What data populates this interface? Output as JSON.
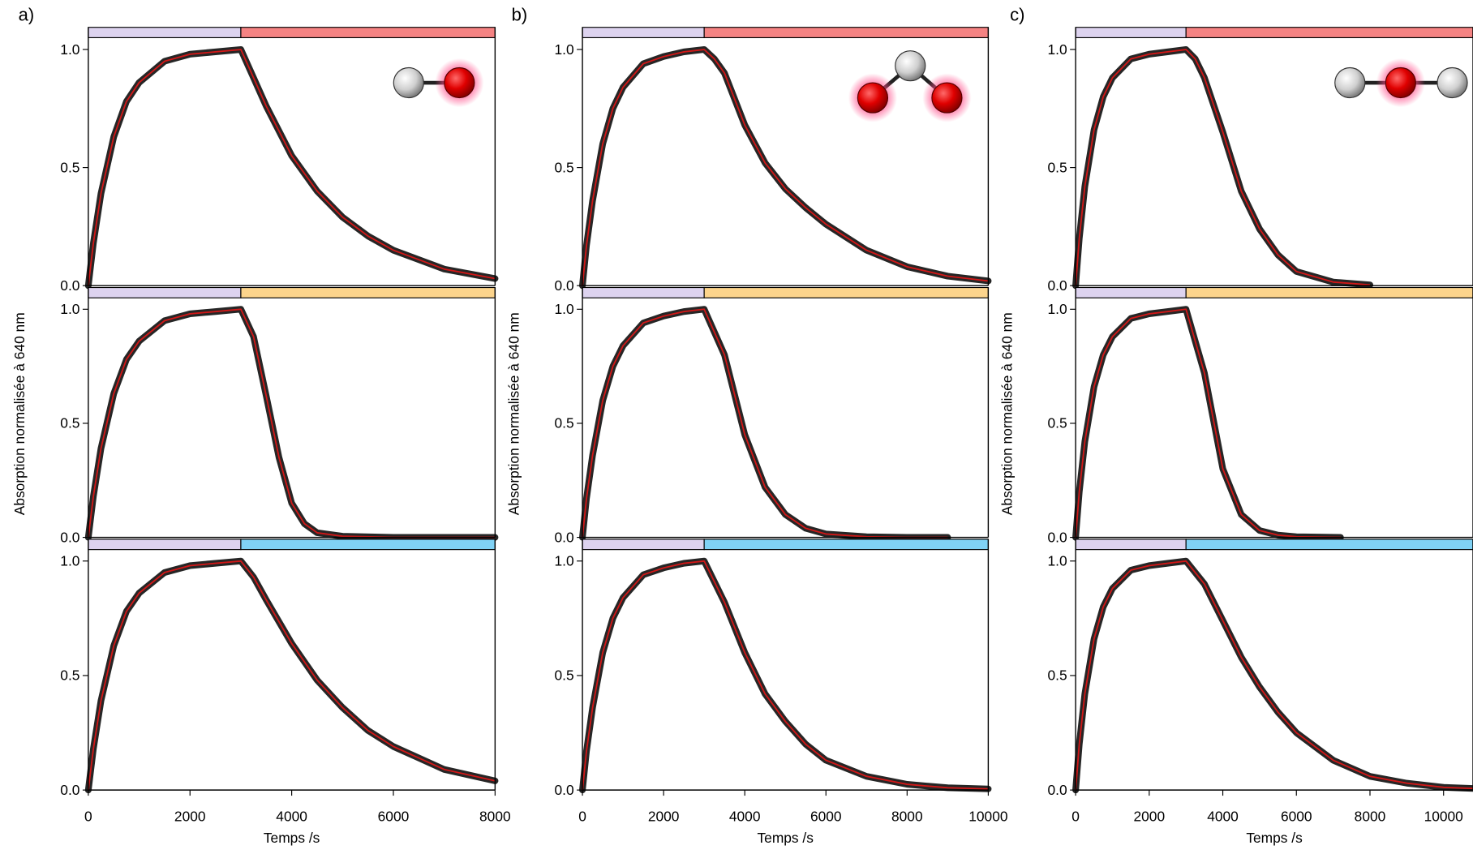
{
  "chart_data": [
    {
      "type": "line",
      "panel_label": "a)",
      "ylabel": "Absorption normalisée à 640 nm",
      "xlabel": "Temps /s",
      "xlim": [
        0,
        8000
      ],
      "xticks": [
        0,
        2000,
        4000,
        6000,
        8000
      ],
      "panels": [
        {
          "ylim": [
            0,
            1.05
          ],
          "yticks": [
            {
              "value": 0,
              "label": "0.0"
            },
            0.5,
            {
              "value": 1,
              "label": "1.0"
            }
          ],
          "bars": [
            {
              "start": 0,
              "end": 3000,
              "color": "#ddd3ef"
            },
            {
              "start": 3000,
              "end": 8000,
              "color": "#f58383"
            }
          ],
          "series": [
            {
              "color": "#d01818",
              "band_color": "#000000",
              "x": [
                0,
                100,
                250,
                500,
                750,
                1000,
                1500,
                2000,
                2500,
                3000,
                3250,
                3500,
                4000,
                4500,
                5000,
                5500,
                6000,
                7000,
                8000
              ],
              "values": [
                0,
                0.18,
                0.39,
                0.63,
                0.78,
                0.86,
                0.95,
                0.98,
                0.99,
                1.0,
                0.88,
                0.76,
                0.55,
                0.4,
                0.29,
                0.21,
                0.15,
                0.07,
                0.03
              ]
            }
          ]
        },
        {
          "ylim": [
            0,
            1.05
          ],
          "yticks": [
            {
              "value": 0,
              "label": "0.0"
            },
            0.5,
            {
              "value": 1,
              "label": "1.0"
            }
          ],
          "bars": [
            {
              "start": 0,
              "end": 3000,
              "color": "#ddd3ef"
            },
            {
              "start": 3000,
              "end": 8000,
              "color": "#fcd48c"
            }
          ],
          "series": [
            {
              "color": "#d01818",
              "band_color": "#000000",
              "x": [
                0,
                100,
                250,
                500,
                750,
                1000,
                1500,
                2000,
                2500,
                3000,
                3250,
                3500,
                3750,
                4000,
                4250,
                4500,
                5000,
                6000,
                8000
              ],
              "values": [
                0,
                0.18,
                0.39,
                0.63,
                0.78,
                0.86,
                0.95,
                0.98,
                0.99,
                1.0,
                0.88,
                0.62,
                0.35,
                0.15,
                0.06,
                0.02,
                0.005,
                0,
                0
              ]
            }
          ]
        },
        {
          "ylim": [
            0,
            1.05
          ],
          "yticks": [
            {
              "value": 0,
              "label": "0.0"
            },
            0.5,
            {
              "value": 1,
              "label": "1.0"
            }
          ],
          "bars": [
            {
              "start": 0,
              "end": 3000,
              "color": "#ddd3ef"
            },
            {
              "start": 3000,
              "end": 8000,
              "color": "#80d2f5"
            }
          ],
          "series": [
            {
              "color": "#d01818",
              "band_color": "#000000",
              "x": [
                0,
                100,
                250,
                500,
                750,
                1000,
                1500,
                2000,
                2500,
                3000,
                3250,
                3500,
                4000,
                4500,
                5000,
                5500,
                6000,
                7000,
                8000
              ],
              "values": [
                0,
                0.18,
                0.39,
                0.63,
                0.78,
                0.86,
                0.95,
                0.98,
                0.99,
                1.0,
                0.93,
                0.83,
                0.64,
                0.48,
                0.36,
                0.26,
                0.19,
                0.09,
                0.04
              ]
            }
          ]
        }
      ]
    },
    {
      "type": "line",
      "panel_label": "b)",
      "ylabel": "Absorption normalisée à 640 nm",
      "xlabel": "Temps /s",
      "xlim": [
        0,
        10000
      ],
      "xticks": [
        0,
        2000,
        4000,
        6000,
        8000,
        10000
      ],
      "panels": [
        {
          "ylim": [
            0,
            1.05
          ],
          "yticks": [
            {
              "value": 0,
              "label": "0.0"
            },
            0.5,
            {
              "value": 1,
              "label": "1.0"
            }
          ],
          "bars": [
            {
              "start": 0,
              "end": 3000,
              "color": "#ddd3ef"
            },
            {
              "start": 3000,
              "end": 10000,
              "color": "#f58383"
            }
          ],
          "series": [
            {
              "color": "#d01818",
              "band_color": "#000000",
              "x": [
                0,
                100,
                250,
                500,
                750,
                1000,
                1500,
                2000,
                2500,
                3000,
                3250,
                3500,
                4000,
                4500,
                5000,
                5500,
                6000,
                7000,
                8000,
                9000,
                10000
              ],
              "values": [
                0,
                0.17,
                0.36,
                0.6,
                0.75,
                0.84,
                0.94,
                0.97,
                0.99,
                1.0,
                0.96,
                0.9,
                0.68,
                0.52,
                0.41,
                0.33,
                0.26,
                0.15,
                0.08,
                0.04,
                0.02
              ]
            }
          ]
        },
        {
          "ylim": [
            0,
            1.05
          ],
          "yticks": [
            {
              "value": 0,
              "label": "0.0"
            },
            0.5,
            {
              "value": 1,
              "label": "1.0"
            }
          ],
          "bars": [
            {
              "start": 0,
              "end": 3000,
              "color": "#ddd3ef"
            },
            {
              "start": 3000,
              "end": 10000,
              "color": "#fcd48c"
            }
          ],
          "series": [
            {
              "color": "#d01818",
              "band_color": "#000000",
              "x": [
                0,
                100,
                250,
                500,
                750,
                1000,
                1500,
                2000,
                2500,
                3000,
                3500,
                4000,
                4500,
                5000,
                5500,
                6000,
                7000,
                8000,
                9000
              ],
              "values": [
                0,
                0.17,
                0.36,
                0.6,
                0.75,
                0.84,
                0.94,
                0.97,
                0.99,
                1.0,
                0.8,
                0.45,
                0.22,
                0.1,
                0.04,
                0.015,
                0.003,
                0,
                0
              ]
            }
          ]
        },
        {
          "ylim": [
            0,
            1.05
          ],
          "yticks": [
            {
              "value": 0,
              "label": "0.0"
            },
            0.5,
            {
              "value": 1,
              "label": "1.0"
            }
          ],
          "bars": [
            {
              "start": 0,
              "end": 3000,
              "color": "#ddd3ef"
            },
            {
              "start": 3000,
              "end": 10000,
              "color": "#80d2f5"
            }
          ],
          "series": [
            {
              "color": "#d01818",
              "band_color": "#000000",
              "x": [
                0,
                100,
                250,
                500,
                750,
                1000,
                1500,
                2000,
                2500,
                3000,
                3500,
                4000,
                4500,
                5000,
                5500,
                6000,
                7000,
                8000,
                9000,
                10000
              ],
              "values": [
                0,
                0.17,
                0.36,
                0.6,
                0.75,
                0.84,
                0.94,
                0.97,
                0.99,
                1.0,
                0.82,
                0.6,
                0.42,
                0.3,
                0.2,
                0.13,
                0.06,
                0.025,
                0.01,
                0.005
              ]
            }
          ]
        }
      ]
    },
    {
      "type": "line",
      "panel_label": "c)",
      "ylabel": "Absorption normalisée à 640 nm",
      "xlabel": "Temps /s",
      "xlim": [
        0,
        10800
      ],
      "xticks": [
        0,
        2000,
        4000,
        6000,
        8000,
        10000
      ],
      "panels": [
        {
          "ylim": [
            0,
            1.05
          ],
          "yticks": [
            {
              "value": 0,
              "label": "0.0"
            },
            0.5,
            {
              "value": 1,
              "label": "1.0"
            }
          ],
          "bars": [
            {
              "start": 0,
              "end": 3000,
              "color": "#ddd3ef"
            },
            {
              "start": 3000,
              "end": 10800,
              "color": "#f58383"
            }
          ],
          "series": [
            {
              "color": "#d01818",
              "band_color": "#000000",
              "x": [
                0,
                100,
                250,
                500,
                750,
                1000,
                1500,
                2000,
                2500,
                3000,
                3250,
                3500,
                4000,
                4500,
                5000,
                5500,
                6000,
                7000,
                8000
              ],
              "values": [
                0,
                0.2,
                0.42,
                0.66,
                0.8,
                0.88,
                0.96,
                0.98,
                0.99,
                1.0,
                0.96,
                0.88,
                0.65,
                0.4,
                0.24,
                0.13,
                0.06,
                0.015,
                0.003
              ]
            }
          ]
        },
        {
          "ylim": [
            0,
            1.05
          ],
          "yticks": [
            {
              "value": 0,
              "label": "0.0"
            },
            0.5,
            {
              "value": 1,
              "label": "1.0"
            }
          ],
          "bars": [
            {
              "start": 0,
              "end": 3000,
              "color": "#ddd3ef"
            },
            {
              "start": 3000,
              "end": 10800,
              "color": "#fcd48c"
            }
          ],
          "series": [
            {
              "color": "#d01818",
              "band_color": "#000000",
              "x": [
                0,
                100,
                250,
                500,
                750,
                1000,
                1500,
                2000,
                2500,
                3000,
                3500,
                4000,
                4500,
                5000,
                5500,
                6000,
                7200
              ],
              "values": [
                0,
                0.2,
                0.42,
                0.66,
                0.8,
                0.88,
                0.96,
                0.98,
                0.99,
                1.0,
                0.72,
                0.3,
                0.1,
                0.03,
                0.01,
                0.003,
                0
              ]
            }
          ]
        },
        {
          "ylim": [
            0,
            1.05
          ],
          "yticks": [
            {
              "value": 0,
              "label": "0.0"
            },
            0.5,
            {
              "value": 1,
              "label": "1.0"
            }
          ],
          "bars": [
            {
              "start": 0,
              "end": 3000,
              "color": "#ddd3ef"
            },
            {
              "start": 3000,
              "end": 10800,
              "color": "#80d2f5"
            }
          ],
          "series": [
            {
              "color": "#d01818",
              "band_color": "#000000",
              "x": [
                0,
                100,
                250,
                500,
                750,
                1000,
                1500,
                2000,
                2500,
                3000,
                3500,
                4000,
                4500,
                5000,
                5500,
                6000,
                7000,
                8000,
                9000,
                10000,
                10800
              ],
              "values": [
                0,
                0.2,
                0.42,
                0.66,
                0.8,
                0.88,
                0.96,
                0.98,
                0.99,
                1.0,
                0.9,
                0.74,
                0.58,
                0.45,
                0.34,
                0.25,
                0.13,
                0.06,
                0.03,
                0.012,
                0.007
              ]
            }
          ]
        }
      ]
    }
  ]
}
